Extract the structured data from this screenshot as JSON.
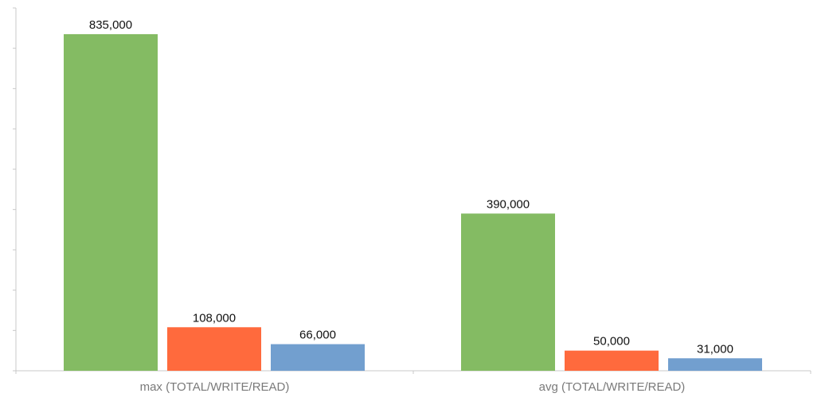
{
  "chart_data": {
    "type": "bar",
    "categories": [
      "max (TOTAL/WRITE/READ)",
      "avg (TOTAL/WRITE/READ)"
    ],
    "series": [
      {
        "values": [
          835000,
          390000
        ],
        "color": "#84bb63"
      },
      {
        "values": [
          108000,
          50000
        ],
        "color": "#ff6a3d"
      },
      {
        "values": [
          66000,
          31000
        ],
        "color": "#729fcf"
      }
    ],
    "data_labels": [
      [
        "835,000",
        "390,000"
      ],
      [
        "108,000",
        "50,000"
      ],
      [
        "66,000",
        "31,000"
      ]
    ],
    "ylim": [
      0,
      900000
    ],
    "y_tick_step": 100000,
    "grid": false,
    "legend": "none",
    "title": "",
    "xlabel": "",
    "ylabel": ""
  }
}
